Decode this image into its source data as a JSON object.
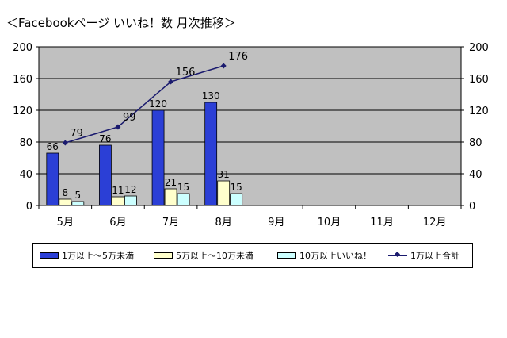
{
  "chart_data": {
    "type": "bar",
    "title": "＜Facebookページ いいね！数 月次推移＞",
    "categories": [
      "5月",
      "6月",
      "7月",
      "8月",
      "9月",
      "10月",
      "11月",
      "12月"
    ],
    "series": [
      {
        "name": "1万以上～5万未満",
        "kind": "bar",
        "color": "#2b3fd6",
        "values": [
          66,
          76,
          120,
          130,
          null,
          null,
          null,
          null
        ]
      },
      {
        "name": "5万以上～10万未満",
        "kind": "bar",
        "color": "#ffffcc",
        "values": [
          8,
          11,
          21,
          31,
          null,
          null,
          null,
          null
        ]
      },
      {
        "name": "10万以上いいね！",
        "kind": "bar",
        "color": "#ccffff",
        "values": [
          5,
          12,
          15,
          15,
          null,
          null,
          null,
          null
        ]
      },
      {
        "name": "1万以上合計",
        "kind": "line",
        "color": "#1a1a6e",
        "values": [
          79,
          99,
          156,
          176,
          null,
          null,
          null,
          null
        ]
      }
    ],
    "ylim": [
      0,
      200
    ],
    "yticks": [
      0,
      40,
      80,
      120,
      160,
      200
    ],
    "y2ticks": [
      0,
      40,
      80,
      120,
      160,
      200
    ],
    "plot_background": "#c0c0c0",
    "grid": true,
    "legend": "bottom"
  }
}
